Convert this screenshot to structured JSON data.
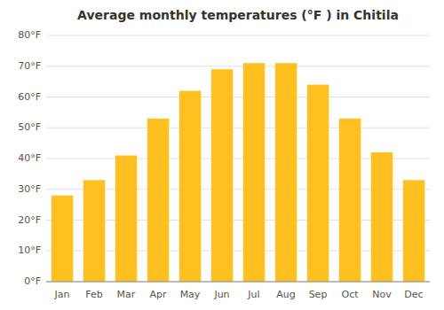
{
  "chart_data": {
    "type": "bar",
    "title": "Average monthly temperatures (°F ) in Chitila",
    "categories": [
      "Jan",
      "Feb",
      "Mar",
      "Apr",
      "May",
      "Jun",
      "Jul",
      "Aug",
      "Sep",
      "Oct",
      "Nov",
      "Dec"
    ],
    "values": [
      28,
      33,
      41,
      53,
      62,
      69,
      71,
      71,
      64,
      53,
      42,
      33
    ],
    "color": "#FFC020",
    "ylim": [
      0,
      80
    ],
    "yticks": [
      {
        "value": 0,
        "label": "0°F"
      },
      {
        "value": 10,
        "label": "10°F"
      },
      {
        "value": 20,
        "label": "20°F"
      },
      {
        "value": 30,
        "label": "30°F"
      },
      {
        "value": 40,
        "label": "40°F"
      },
      {
        "value": 50,
        "label": "50°F"
      },
      {
        "value": 60,
        "label": "60°F"
      },
      {
        "value": 70,
        "label": "70°F"
      },
      {
        "value": 80,
        "label": "80°F"
      }
    ],
    "grid": true
  }
}
